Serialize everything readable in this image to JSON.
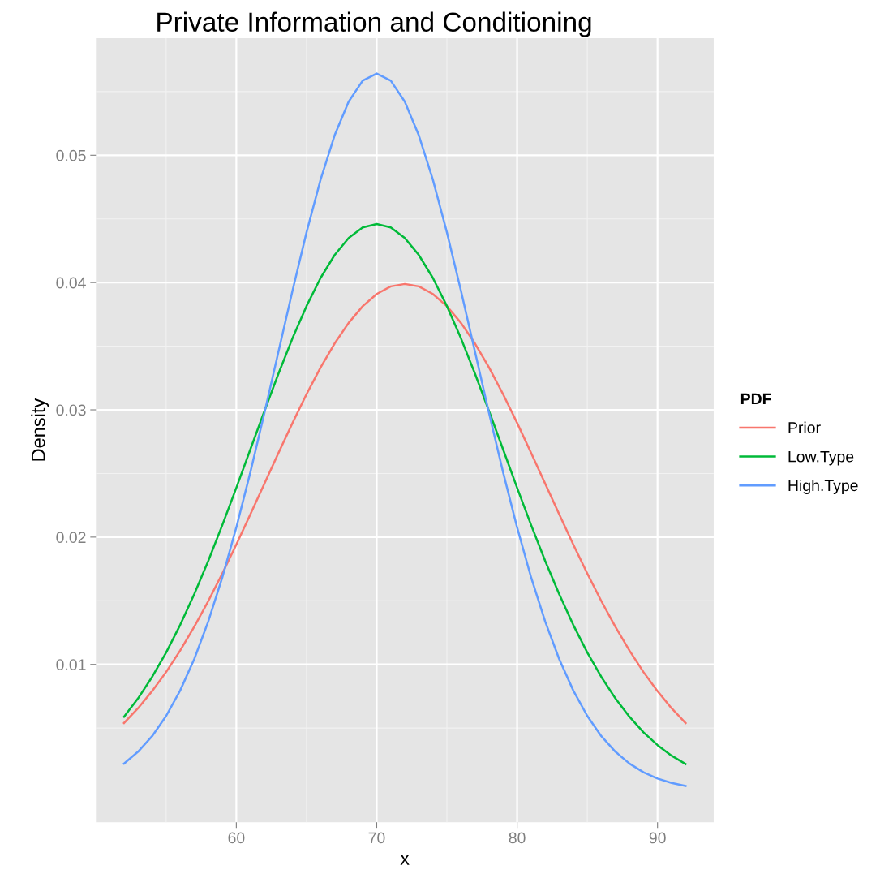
{
  "chart_data": {
    "type": "line",
    "title": "Private Information and Conditioning",
    "xlabel": "x",
    "ylabel": "Density",
    "legend_title": "PDF",
    "x": [
      52,
      53,
      54,
      55,
      56,
      57,
      58,
      59,
      60,
      61,
      62,
      63,
      64,
      65,
      66,
      67,
      68,
      69,
      70,
      71,
      72,
      73,
      74,
      75,
      76,
      77,
      78,
      79,
      80,
      81,
      82,
      83,
      84,
      85,
      86,
      87,
      88,
      89,
      90,
      91,
      92
    ],
    "series": [
      {
        "name": "Prior",
        "color": "#f8766d",
        "values": [
          0.0054,
          0.00656,
          0.0079,
          0.0094,
          0.01109,
          0.01295,
          0.01497,
          0.01714,
          0.01942,
          0.02179,
          0.0242,
          0.02661,
          0.02897,
          0.03123,
          0.03332,
          0.03521,
          0.03683,
          0.03814,
          0.0391,
          0.0397,
          0.03989,
          0.0397,
          0.0391,
          0.03814,
          0.03683,
          0.03521,
          0.03332,
          0.03123,
          0.02897,
          0.02661,
          0.0242,
          0.02179,
          0.01942,
          0.01714,
          0.01497,
          0.01295,
          0.01109,
          0.0094,
          0.0079,
          0.00656,
          0.0054
        ]
      },
      {
        "name": "Low.Type",
        "color": "#00ba38",
        "values": [
          0.00589,
          0.00733,
          0.00901,
          0.01093,
          0.0131,
          0.01551,
          0.01813,
          0.02094,
          0.02387,
          0.02689,
          0.0299,
          0.03284,
          0.03562,
          0.03815,
          0.04036,
          0.04216,
          0.0435,
          0.04433,
          0.0446,
          0.04433,
          0.0435,
          0.04216,
          0.04036,
          0.03815,
          0.03562,
          0.03284,
          0.0299,
          0.02689,
          0.02387,
          0.02094,
          0.01813,
          0.01551,
          0.0131,
          0.01093,
          0.00901,
          0.00733,
          0.00589,
          0.00467,
          0.00366,
          0.00283,
          0.00217
        ]
      },
      {
        "name": "High.Type",
        "color": "#619cff",
        "values": [
          0.00221,
          0.00314,
          0.00436,
          0.00595,
          0.00795,
          0.01041,
          0.01337,
          0.01682,
          0.02076,
          0.0251,
          0.02975,
          0.03456,
          0.03936,
          0.04394,
          0.04808,
          0.05156,
          0.05421,
          0.05586,
          0.05642,
          0.05586,
          0.05421,
          0.05156,
          0.04808,
          0.04394,
          0.03936,
          0.03456,
          0.02975,
          0.0251,
          0.02076,
          0.01682,
          0.01337,
          0.01041,
          0.00795,
          0.00595,
          0.00436,
          0.00314,
          0.00221,
          0.00153,
          0.00103,
          0.00069,
          0.00045
        ]
      }
    ],
    "xlim": [
      50,
      94
    ],
    "ylim": [
      -0.0024,
      0.0592
    ],
    "xticks": [
      60,
      70,
      80,
      90
    ],
    "yticks": [
      0.01,
      0.02,
      0.03,
      0.04,
      0.05
    ],
    "grid": true,
    "legend": "right",
    "marker": "none",
    "line_style": "solid"
  }
}
